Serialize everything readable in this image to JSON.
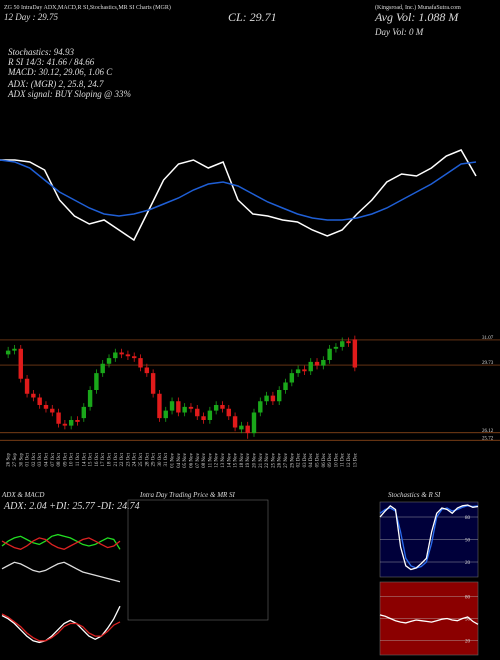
{
  "header": {
    "title": "ZG 50 IntraDay ADX,MACD,R SI,Stochastics,MR SI Charts (MGR)",
    "company": "(Kingsroad, Inc.) MunafaSutra.com",
    "day_price": "12 Day : 29.75",
    "close": "CL: 29.71",
    "avg_vol": "Avg Vol: 1.088 M",
    "day_vol": "Day Vol: 0 M",
    "stoch": "Stochastics: 94.93",
    "rsi": "R SI 14/3: 41.66 / 84.66",
    "macd": "MACD: 30.12, 29.06, 1.06 C",
    "adx": "ADX: (MGR) 2, 25.8, 24.7",
    "adx_signal": "ADX signal: BUY Sloping @ 33%"
  },
  "chart_data": [
    {
      "type": "line",
      "ylim": [
        25.5,
        31
      ],
      "series": [
        {
          "color": "#ffffff",
          "values": [
            30.0,
            30.0,
            29.9,
            29.5,
            28.0,
            27.2,
            26.8,
            27.0,
            26.5,
            26.0,
            27.5,
            29.0,
            29.8,
            30.0,
            29.6,
            29.9,
            28.0,
            27.3,
            27.2,
            27.0,
            26.9,
            26.5,
            26.2,
            26.5,
            27.3,
            28.0,
            28.9,
            29.3,
            29.2,
            29.6,
            30.2,
            30.5,
            29.2
          ]
        },
        {
          "color": "#1f5fd6",
          "values": [
            30.0,
            29.9,
            29.6,
            29.0,
            28.4,
            28.0,
            27.6,
            27.3,
            27.2,
            27.3,
            27.5,
            27.8,
            28.1,
            28.5,
            28.8,
            28.9,
            28.7,
            28.3,
            27.9,
            27.6,
            27.3,
            27.1,
            27.0,
            27.0,
            27.1,
            27.3,
            27.6,
            28.0,
            28.4,
            28.8,
            29.3,
            29.8,
            29.9
          ]
        }
      ]
    },
    {
      "type": "candlestick",
      "up_color": "#1aa71a",
      "down_color": "#e01b1b",
      "ylim": [
        25.2,
        31.6
      ],
      "yticks": [
        31.07,
        29.73,
        26.12,
        25.72
      ],
      "x": [
        "26 Sep",
        "27 Sep",
        "30 Sep",
        "01 Oct",
        "02 Oct",
        "03 Oct",
        "04 Oct",
        "07 Oct",
        "08 Oct",
        "09 Oct",
        "10 Oct",
        "11 Oct",
        "14 Oct",
        "15 Oct",
        "16 Oct",
        "17 Oct",
        "18 Oct",
        "21 Oct",
        "22 Oct",
        "23 Oct",
        "24 Oct",
        "25 Oct",
        "28 Oct",
        "29 Oct",
        "30 Oct",
        "31 Oct",
        "01 Nov",
        "04 Nov",
        "05 Nov",
        "06 Nov",
        "07 Nov",
        "08 Nov",
        "11 Nov",
        "12 Nov",
        "13 Nov",
        "14 Nov",
        "15 Nov",
        "18 Nov",
        "19 Nov",
        "20 Nov",
        "21 Nov",
        "22 Nov",
        "25 Nov",
        "26 Nov",
        "27 Nov",
        "29 Nov",
        "02 Dec",
        "03 Dec",
        "04 Dec",
        "05 Dec",
        "06 Dec",
        "09 Dec",
        "10 Dec",
        "11 Dec",
        "12 Dec",
        "13 Dec"
      ],
      "open": [
        30.3,
        30.5,
        30.6,
        29.0,
        28.2,
        28.0,
        27.6,
        27.4,
        27.2,
        26.6,
        26.5,
        26.8,
        26.9,
        27.5,
        28.4,
        29.3,
        29.8,
        30.1,
        30.4,
        30.3,
        30.2,
        30.1,
        29.6,
        29.3,
        28.2,
        26.9,
        27.3,
        27.8,
        27.2,
        27.5,
        27.4,
        27.0,
        26.8,
        27.3,
        27.6,
        27.4,
        27.0,
        26.3,
        26.5,
        26.1,
        27.2,
        27.8,
        28.1,
        27.8,
        28.4,
        28.8,
        29.3,
        29.5,
        29.4,
        29.9,
        29.7,
        30.0,
        30.6,
        30.7,
        31.0,
        31.1
      ],
      "high": [
        30.7,
        30.8,
        30.8,
        29.2,
        28.4,
        28.2,
        27.8,
        27.6,
        27.4,
        26.8,
        27.0,
        27.0,
        27.7,
        28.6,
        29.5,
        30.0,
        30.3,
        30.6,
        30.6,
        30.5,
        30.4,
        30.3,
        29.8,
        29.5,
        28.4,
        27.5,
        28.0,
        28.0,
        27.7,
        27.7,
        27.6,
        27.2,
        27.5,
        27.8,
        27.8,
        27.6,
        27.2,
        26.7,
        26.7,
        27.4,
        28.0,
        28.3,
        28.3,
        28.6,
        29.0,
        29.5,
        29.7,
        29.7,
        30.1,
        30.1,
        30.2,
        30.8,
        30.9,
        31.2,
        31.2,
        31.3
      ],
      "low": [
        30.1,
        30.3,
        28.8,
        28.0,
        27.8,
        27.4,
        27.2,
        27.0,
        26.4,
        26.3,
        26.3,
        26.5,
        26.7,
        27.3,
        28.2,
        29.1,
        29.6,
        29.9,
        30.1,
        30.0,
        29.9,
        29.4,
        29.1,
        28.0,
        26.7,
        26.7,
        27.1,
        27.0,
        27.0,
        27.2,
        26.8,
        26.6,
        26.6,
        27.1,
        27.2,
        26.8,
        26.2,
        26.1,
        25.8,
        25.9,
        27.0,
        27.6,
        27.6,
        27.6,
        28.2,
        28.6,
        29.1,
        29.2,
        29.2,
        29.5,
        29.5,
        29.8,
        30.4,
        30.5,
        30.7,
        29.4
      ],
      "close": [
        30.5,
        30.6,
        29.0,
        28.2,
        28.0,
        27.6,
        27.4,
        27.2,
        26.6,
        26.5,
        26.8,
        26.7,
        27.5,
        28.4,
        29.3,
        29.8,
        30.1,
        30.4,
        30.3,
        30.2,
        30.1,
        29.6,
        29.3,
        28.2,
        26.9,
        27.3,
        27.8,
        27.2,
        27.5,
        27.4,
        27.0,
        26.8,
        27.3,
        27.6,
        27.4,
        27.0,
        26.4,
        26.5,
        26.1,
        27.2,
        27.8,
        28.1,
        27.8,
        28.4,
        28.8,
        29.3,
        29.5,
        29.4,
        29.9,
        29.7,
        30.0,
        30.6,
        30.7,
        31.0,
        30.9,
        29.6
      ]
    },
    {
      "type": "line",
      "title": "ADX & MACD",
      "subtitle": "ADX: 2.04 +DI: 25.77 -DI: 24.74",
      "ylim": [
        0,
        40
      ],
      "series": [
        {
          "color": "#22dd22",
          "values": [
            24,
            27,
            29,
            30,
            28,
            26,
            25,
            27,
            30,
            31,
            30,
            29,
            27,
            25,
            24,
            25,
            27,
            29,
            28,
            22
          ]
        },
        {
          "color": "#dd2222",
          "values": [
            27,
            25,
            23,
            22,
            24,
            27,
            29,
            28,
            25,
            23,
            22,
            24,
            26,
            28,
            29,
            27,
            25,
            23,
            24,
            27
          ]
        },
        {
          "color": "#dddddd",
          "values": [
            10,
            12,
            14,
            13,
            11,
            9,
            8,
            9,
            11,
            13,
            14,
            12,
            10,
            8,
            7,
            6,
            5,
            4,
            3,
            2
          ]
        }
      ]
    },
    {
      "type": "line",
      "ylim": [
        27,
        31
      ],
      "series": [
        {
          "color": "#ffffff",
          "values": [
            29.5,
            29.3,
            29.0,
            28.6,
            28.2,
            27.9,
            27.8,
            27.9,
            28.2,
            28.6,
            29.0,
            29.2,
            29.0,
            28.6,
            28.2,
            28.0,
            28.2,
            28.7,
            29.3,
            30.1
          ]
        },
        {
          "color": "#dd2222",
          "values": [
            29.6,
            29.4,
            29.1,
            28.8,
            28.4,
            28.1,
            27.9,
            27.9,
            28.1,
            28.4,
            28.8,
            29.0,
            29.0,
            28.8,
            28.4,
            28.2,
            28.2,
            28.5,
            28.9,
            29.1
          ]
        }
      ]
    },
    {
      "type": "line",
      "title": "Intra Day Trading Price & MR SI",
      "series": []
    },
    {
      "type": "line",
      "title": "Stochastics & R SI",
      "background": "#00003a",
      "ylim": [
        0,
        100
      ],
      "yticks": [
        20,
        50,
        80
      ],
      "series": [
        {
          "color": "#2a6cf0",
          "values": [
            85,
            90,
            92,
            88,
            60,
            25,
            15,
            12,
            14,
            20,
            45,
            80,
            90,
            92,
            88,
            90,
            93,
            95,
            94,
            95
          ]
        },
        {
          "color": "#ffffff",
          "values": [
            80,
            88,
            95,
            90,
            40,
            15,
            10,
            12,
            18,
            25,
            60,
            85,
            92,
            90,
            85,
            92,
            95,
            96,
            93,
            94
          ]
        }
      ]
    },
    {
      "type": "line",
      "background": "#8b0000",
      "ylim": [
        0,
        100
      ],
      "yticks": [
        20,
        50,
        80
      ],
      "series": [
        {
          "color": "#ffffff",
          "values": [
            55,
            53,
            50,
            47,
            45,
            44,
            46,
            48,
            47,
            46,
            45,
            47,
            49,
            50,
            48,
            47,
            50,
            52,
            46,
            42
          ]
        }
      ]
    }
  ]
}
